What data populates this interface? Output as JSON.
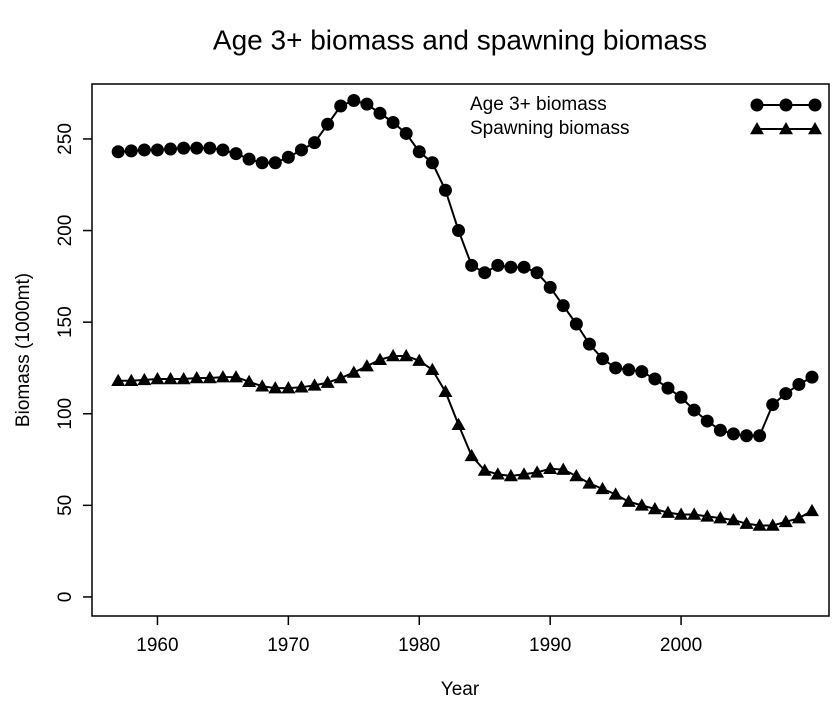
{
  "chart_data": {
    "type": "line",
    "title": "Age 3+ biomass and spawning biomass",
    "xlabel": "Year",
    "ylabel": "Biomass (1000mt)",
    "x": [
      1957,
      1958,
      1959,
      1960,
      1961,
      1962,
      1963,
      1964,
      1965,
      1966,
      1967,
      1968,
      1969,
      1970,
      1971,
      1972,
      1973,
      1974,
      1975,
      1976,
      1977,
      1978,
      1979,
      1980,
      1981,
      1982,
      1983,
      1984,
      1985,
      1986,
      1987,
      1988,
      1989,
      1990,
      1991,
      1992,
      1993,
      1994,
      1995,
      1996,
      1997,
      1998,
      1999,
      2000,
      2001,
      2002,
      2003,
      2004,
      2005,
      2006,
      2007,
      2008,
      2009,
      2010
    ],
    "series": [
      {
        "name": "Age 3+ biomass",
        "color": "#000000",
        "marker": "circle",
        "values": [
          243,
          243.5,
          244,
          244,
          244.5,
          245,
          245,
          245,
          244,
          242,
          239,
          237,
          237,
          240,
          244,
          248,
          258,
          268,
          271,
          269,
          264,
          259,
          253,
          243,
          237,
          222,
          200,
          181,
          177,
          181,
          180,
          180,
          177,
          169,
          159,
          149,
          138,
          130,
          125,
          124,
          123,
          119,
          114,
          109,
          102,
          96,
          91,
          89,
          88,
          88,
          105,
          111,
          116,
          120
        ]
      },
      {
        "name": "Spawning biomass",
        "color": "#000000",
        "marker": "triangle",
        "values": [
          118,
          118,
          118.5,
          119,
          119,
          119,
          119.5,
          119.5,
          120,
          120,
          117.5,
          115,
          114,
          114,
          114.5,
          115.5,
          117,
          119.5,
          122.5,
          126,
          129.5,
          131.5,
          131.5,
          129,
          124,
          112,
          94,
          77,
          69,
          67,
          66,
          67,
          68,
          70,
          69.5,
          66,
          62,
          59,
          56,
          52,
          50,
          48,
          46,
          45,
          45,
          44,
          43,
          42,
          40,
          39,
          39,
          41,
          43,
          47
        ]
      }
    ],
    "xlim": [
      1955,
      2011.3
    ],
    "ylim": [
      -10.4,
      280
    ],
    "xticks": [
      1960,
      1970,
      1980,
      1990,
      2000
    ],
    "yticks": [
      0,
      50,
      100,
      150,
      200,
      250
    ],
    "grid": false,
    "legend": "top-right"
  }
}
